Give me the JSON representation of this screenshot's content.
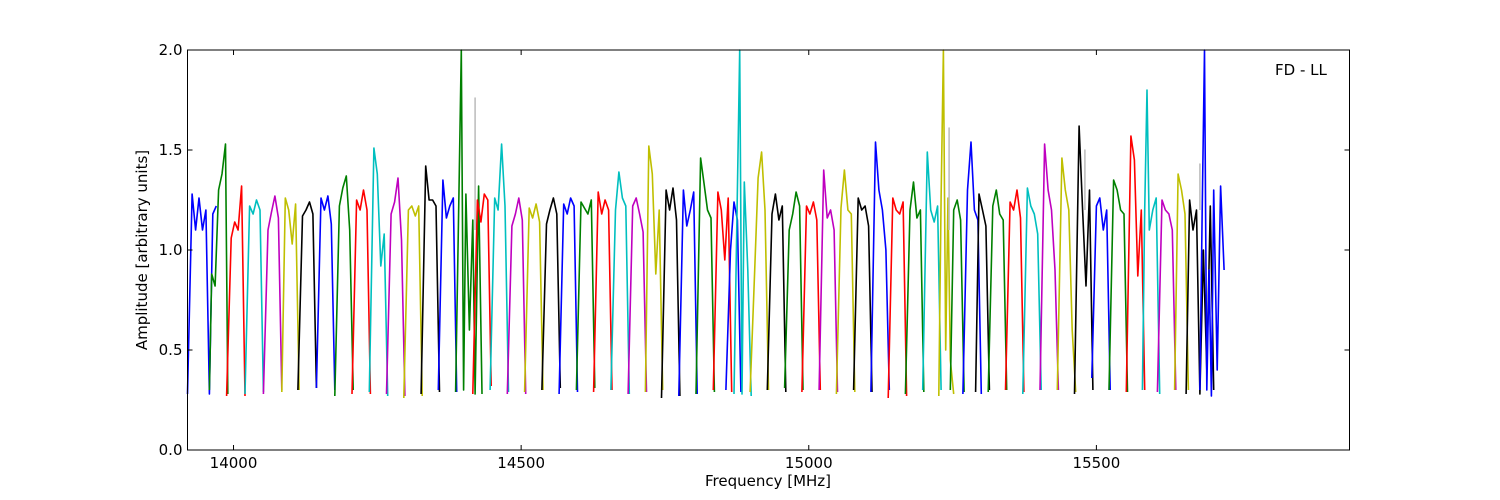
{
  "chart_data": {
    "type": "line",
    "title": "",
    "xlabel": "Frequency [MHz]",
    "ylabel": "Amplitude [arbitrary units]",
    "xlim": [
      13920,
      15940
    ],
    "ylim": [
      0.0,
      2.0
    ],
    "xticks": [
      14000,
      14500,
      15000,
      15500
    ],
    "xtick_labels": [
      "14000",
      "14500",
      "15000",
      "15500"
    ],
    "yticks": [
      0.0,
      0.5,
      1.0,
      1.5,
      2.0
    ],
    "ytick_labels": [
      "0.0",
      "0.5",
      "1.0",
      "1.5",
      "2.0"
    ],
    "grid": false,
    "annotation": "FD - LL",
    "color_cycle": [
      "#0000ff",
      "#008000",
      "#ff0000",
      "#00bfbf",
      "#bf00bf",
      "#bfbf00",
      "#000000"
    ],
    "series": [
      {
        "color": "#0000ff",
        "x": [
          13920,
          13928,
          13934,
          13940,
          13946,
          13952,
          13958,
          13964,
          13970
        ],
        "y": [
          0.28,
          1.28,
          1.1,
          1.26,
          1.1,
          1.2,
          0.28,
          1.18,
          1.22
        ]
      },
      {
        "color": "#008000",
        "x": [
          13958,
          13962,
          13968,
          13974,
          13980,
          13986,
          13990
        ],
        "y": [
          0.3,
          0.88,
          0.82,
          1.3,
          1.38,
          1.53,
          0.28
        ]
      },
      {
        "color": "#ff0000",
        "x": [
          13988,
          13996,
          14002,
          14008,
          14014,
          14020
        ],
        "y": [
          0.27,
          1.06,
          1.14,
          1.1,
          1.32,
          0.27
        ]
      },
      {
        "color": "#00bfbf",
        "x": [
          14020,
          14028,
          14034,
          14040,
          14046,
          14052
        ],
        "y": [
          0.28,
          1.22,
          1.18,
          1.25,
          1.2,
          0.29
        ]
      },
      {
        "color": "#bf00bf",
        "x": [
          14052,
          14060,
          14066,
          14072,
          14078,
          14084
        ],
        "y": [
          0.28,
          1.1,
          1.19,
          1.27,
          1.16,
          0.3
        ]
      },
      {
        "color": "#bfbf00",
        "x": [
          14084,
          14090,
          14096,
          14102,
          14108,
          14114
        ],
        "y": [
          0.29,
          1.26,
          1.2,
          1.03,
          1.23,
          0.3
        ]
      },
      {
        "color": "#000000",
        "x": [
          14112,
          14120,
          14126,
          14132,
          14138,
          14144
        ],
        "y": [
          0.3,
          1.17,
          1.2,
          1.24,
          1.18,
          0.31
        ]
      },
      {
        "color": "#0000ff",
        "x": [
          14144,
          14152,
          14158,
          14164,
          14170,
          14176
        ],
        "y": [
          0.31,
          1.26,
          1.2,
          1.27,
          1.13,
          0.3
        ]
      },
      {
        "color": "#008000",
        "x": [
          14176,
          14184,
          14190,
          14196,
          14202,
          14208
        ],
        "y": [
          0.27,
          1.22,
          1.31,
          1.37,
          1.1,
          0.3
        ]
      },
      {
        "color": "#ff0000",
        "x": [
          14206,
          14214,
          14220,
          14226,
          14232,
          14238
        ],
        "y": [
          0.28,
          1.25,
          1.2,
          1.3,
          1.2,
          0.28
        ]
      },
      {
        "color": "#00bfbf",
        "x": [
          14236,
          14244,
          14250,
          14256,
          14262,
          14268
        ],
        "y": [
          0.29,
          1.51,
          1.38,
          0.92,
          1.08,
          0.27
        ]
      },
      {
        "color": "#bf00bf",
        "x": [
          14266,
          14274,
          14280,
          14286,
          14292,
          14298
        ],
        "y": [
          0.28,
          1.18,
          1.24,
          1.36,
          1.05,
          0.27
        ]
      },
      {
        "color": "#bfbf00",
        "x": [
          14296,
          14304,
          14310,
          14316,
          14322,
          14328
        ],
        "y": [
          0.26,
          1.2,
          1.22,
          1.17,
          1.22,
          0.27
        ]
      },
      {
        "color": "#000000",
        "x": [
          14326,
          14334,
          14340,
          14346,
          14352,
          14358
        ],
        "y": [
          0.28,
          1.42,
          1.25,
          1.25,
          1.22,
          0.29
        ]
      },
      {
        "color": "#0000ff",
        "x": [
          14356,
          14364,
          14370,
          14376,
          14382,
          14388
        ],
        "y": [
          0.3,
          1.35,
          1.16,
          1.22,
          1.26,
          0.29
        ]
      },
      {
        "color": "#008000",
        "x": [
          14386,
          14392,
          14396,
          14400,
          14404,
          14410,
          14416,
          14420,
          14426,
          14432
        ],
        "y": [
          0.29,
          1.3,
          2.0,
          0.3,
          1.28,
          0.6,
          1.15,
          0.28,
          1.32,
          0.28
        ]
      },
      {
        "color": "#ff0000",
        "x": [
          14416,
          14424,
          14430,
          14436,
          14442,
          14448
        ],
        "y": [
          0.28,
          1.25,
          1.14,
          1.28,
          1.25,
          0.32
        ]
      },
      {
        "color": "#bfbfbf",
        "x": [
          14420,
          14420,
          14420
        ],
        "y": [
          1.1,
          1.76,
          1.1
        ]
      },
      {
        "color": "#00bfbf",
        "x": [
          14446,
          14454,
          14460,
          14466,
          14472,
          14478
        ],
        "y": [
          0.3,
          1.26,
          1.2,
          1.53,
          1.22,
          0.29
        ]
      },
      {
        "color": "#bf00bf",
        "x": [
          14476,
          14484,
          14490,
          14496,
          14502,
          14508
        ],
        "y": [
          0.28,
          1.12,
          1.18,
          1.26,
          1.15,
          0.28
        ]
      },
      {
        "color": "#bfbf00",
        "x": [
          14506,
          14514,
          14520,
          14526,
          14532,
          14538
        ],
        "y": [
          0.29,
          1.21,
          1.16,
          1.23,
          1.14,
          0.3
        ]
      },
      {
        "color": "#000000",
        "x": [
          14536,
          14544,
          14550,
          14556,
          14562,
          14568
        ],
        "y": [
          0.3,
          1.13,
          1.2,
          1.26,
          1.18,
          0.31
        ]
      },
      {
        "color": "#0000ff",
        "x": [
          14566,
          14574,
          14580,
          14586,
          14592,
          14598
        ],
        "y": [
          0.28,
          1.23,
          1.18,
          1.26,
          1.22,
          0.29
        ]
      },
      {
        "color": "#008000",
        "x": [
          14596,
          14604,
          14610,
          14616,
          14622,
          14628
        ],
        "y": [
          0.3,
          1.24,
          1.21,
          1.18,
          1.25,
          0.31
        ]
      },
      {
        "color": "#ff0000",
        "x": [
          14626,
          14634,
          14640,
          14646,
          14652,
          14658
        ],
        "y": [
          0.29,
          1.29,
          1.18,
          1.25,
          1.2,
          0.3
        ]
      },
      {
        "color": "#00bfbf",
        "x": [
          14656,
          14664,
          14670,
          14676,
          14682,
          14688
        ],
        "y": [
          0.3,
          1.2,
          1.39,
          1.26,
          1.22,
          0.28
        ]
      },
      {
        "color": "#bf00bf",
        "x": [
          14686,
          14694,
          14700,
          14706,
          14712,
          14718
        ],
        "y": [
          0.28,
          1.22,
          1.26,
          1.18,
          1.09,
          0.29
        ]
      },
      {
        "color": "#bfbf00",
        "x": [
          14716,
          14722,
          14728,
          14734,
          14740,
          14746
        ],
        "y": [
          0.29,
          1.52,
          1.38,
          0.88,
          1.2,
          0.3
        ]
      },
      {
        "color": "#000000",
        "x": [
          14744,
          14752,
          14758,
          14764,
          14770,
          14776
        ],
        "y": [
          0.26,
          1.3,
          1.2,
          1.31,
          1.15,
          0.27
        ]
      },
      {
        "color": "#0000ff",
        "x": [
          14774,
          14782,
          14788,
          14794,
          14800,
          14806
        ],
        "y": [
          0.27,
          1.3,
          1.12,
          1.2,
          1.29,
          0.28
        ]
      },
      {
        "color": "#008000",
        "x": [
          14804,
          14812,
          14818,
          14824,
          14830,
          14836
        ],
        "y": [
          0.28,
          1.46,
          1.33,
          1.2,
          1.16,
          0.29
        ]
      },
      {
        "color": "#ff0000",
        "x": [
          14834,
          14842,
          14848,
          14854,
          14860,
          14866
        ],
        "y": [
          0.3,
          1.29,
          1.2,
          0.95,
          1.26,
          0.29
        ]
      },
      {
        "color": "#0000ff",
        "x": [
          14856,
          14864,
          14870,
          14876,
          14882
        ],
        "y": [
          0.3,
          1.0,
          1.24,
          1.15,
          0.29
        ]
      },
      {
        "color": "#00bfbf",
        "x": [
          14870,
          14876,
          14880,
          14884,
          14888,
          14894,
          14900
        ],
        "y": [
          0.28,
          1.3,
          2.0,
          0.28,
          1.34,
          0.9,
          0.27
        ]
      },
      {
        "color": "#bfbf00",
        "x": [
          14898,
          14906,
          14912,
          14918,
          14924,
          14930
        ],
        "y": [
          0.29,
          0.9,
          1.36,
          1.49,
          1.2,
          0.3
        ]
      },
      {
        "color": "#000000",
        "x": [
          14928,
          14936,
          14942,
          14948,
          14954,
          14960
        ],
        "y": [
          0.3,
          1.18,
          1.28,
          1.15,
          1.22,
          0.29
        ]
      },
      {
        "color": "#008000",
        "x": [
          14958,
          14966,
          14972,
          14978,
          14984,
          14990
        ],
        "y": [
          0.31,
          1.1,
          1.18,
          1.29,
          1.22,
          0.3
        ]
      },
      {
        "color": "#ff0000",
        "x": [
          14988,
          14996,
          15002,
          15008,
          15014,
          15020
        ],
        "y": [
          0.29,
          1.22,
          1.18,
          1.24,
          1.15,
          0.3
        ]
      },
      {
        "color": "#bf00bf",
        "x": [
          15018,
          15026,
          15032,
          15038,
          15044,
          15050
        ],
        "y": [
          0.3,
          1.4,
          1.16,
          1.2,
          1.1,
          0.29
        ]
      },
      {
        "color": "#bfbf00",
        "x": [
          15048,
          15056,
          15062,
          15068,
          15074,
          15080
        ],
        "y": [
          0.28,
          1.21,
          1.4,
          1.2,
          1.18,
          0.29
        ]
      },
      {
        "color": "#000000",
        "x": [
          15078,
          15086,
          15092,
          15098,
          15104,
          15110
        ],
        "y": [
          0.3,
          1.26,
          1.2,
          1.22,
          1.12,
          0.29
        ]
      },
      {
        "color": "#0000ff",
        "x": [
          15108,
          15116,
          15122,
          15128,
          15134,
          15140
        ],
        "y": [
          0.29,
          1.54,
          1.3,
          1.2,
          1.0,
          0.3
        ]
      },
      {
        "color": "#ff0000",
        "x": [
          15138,
          15146,
          15152,
          15158,
          15164,
          15170
        ],
        "y": [
          0.26,
          1.26,
          1.2,
          1.18,
          1.24,
          0.27
        ]
      },
      {
        "color": "#008000",
        "x": [
          15168,
          15176,
          15182,
          15188,
          15194,
          15200
        ],
        "y": [
          0.28,
          1.2,
          1.34,
          1.16,
          1.2,
          0.29
        ]
      },
      {
        "color": "#00bfbf",
        "x": [
          15198,
          15206,
          15212,
          15218,
          15224,
          15230
        ],
        "y": [
          0.3,
          1.49,
          1.2,
          1.14,
          1.22,
          0.3
        ]
      },
      {
        "color": "#bfbf00",
        "x": [
          15226,
          15230,
          15234,
          15238,
          15242,
          15246,
          15252
        ],
        "y": [
          0.27,
          1.26,
          2.0,
          0.5,
          1.26,
          0.45,
          0.28
        ]
      },
      {
        "color": "#bfbfbf",
        "x": [
          15244,
          15244,
          15244
        ],
        "y": [
          1.1,
          1.61,
          1.1
        ]
      },
      {
        "color": "#008000",
        "x": [
          15246,
          15252,
          15258,
          15264,
          15270
        ],
        "y": [
          0.3,
          1.2,
          1.25,
          1.15,
          0.29
        ]
      },
      {
        "color": "#0000ff",
        "x": [
          15268,
          15276,
          15282,
          15288,
          15294,
          15300
        ],
        "y": [
          0.28,
          1.3,
          1.54,
          1.2,
          1.15,
          0.28
        ]
      },
      {
        "color": "#000000",
        "x": [
          15290,
          15296,
          15302,
          15308,
          15314
        ],
        "y": [
          0.29,
          1.28,
          1.2,
          1.12,
          0.3
        ]
      },
      {
        "color": "#008000",
        "x": [
          15312,
          15320,
          15326,
          15332,
          15338,
          15344
        ],
        "y": [
          0.29,
          1.22,
          1.3,
          1.18,
          1.15,
          0.3
        ]
      },
      {
        "color": "#ff0000",
        "x": [
          15342,
          15350,
          15356,
          15362,
          15368,
          15374
        ],
        "y": [
          0.3,
          1.24,
          1.2,
          1.3,
          1.16,
          0.29
        ]
      },
      {
        "color": "#00bfbf",
        "x": [
          15372,
          15380,
          15386,
          15392,
          15398,
          15404
        ],
        "y": [
          0.28,
          1.31,
          1.22,
          1.18,
          1.08,
          0.3
        ]
      },
      {
        "color": "#bf00bf",
        "x": [
          15402,
          15410,
          15416,
          15422,
          15428,
          15434
        ],
        "y": [
          0.3,
          1.53,
          1.3,
          1.2,
          0.9,
          0.3
        ]
      },
      {
        "color": "#bfbf00",
        "x": [
          15432,
          15440,
          15446,
          15452,
          15458,
          15464
        ],
        "y": [
          0.3,
          1.46,
          1.3,
          1.2,
          0.6,
          0.29
        ]
      },
      {
        "color": "#000000",
        "x": [
          15462,
          15470,
          15476,
          15482,
          15488,
          15494
        ],
        "y": [
          0.28,
          1.62,
          1.2,
          0.82,
          1.3,
          0.3
        ]
      },
      {
        "color": "#bfbfbf",
        "x": [
          15480,
          15480,
          15480
        ],
        "y": [
          1.2,
          1.5,
          1.2
        ]
      },
      {
        "color": "#0000ff",
        "x": [
          15492,
          15500,
          15506,
          15512,
          15518,
          15524
        ],
        "y": [
          0.36,
          1.22,
          1.26,
          1.1,
          1.2,
          0.3
        ]
      },
      {
        "color": "#008000",
        "x": [
          15522,
          15530,
          15536,
          15542,
          15548,
          15554
        ],
        "y": [
          0.3,
          1.35,
          1.3,
          1.2,
          1.18,
          0.29
        ]
      },
      {
        "color": "#ff0000",
        "x": [
          15552,
          15560,
          15566,
          15572,
          15578,
          15584
        ],
        "y": [
          0.29,
          1.57,
          1.45,
          0.87,
          1.2,
          0.3
        ]
      },
      {
        "color": "#00bfbf",
        "x": [
          15580,
          15584,
          15588,
          15592,
          15598,
          15604,
          15610
        ],
        "y": [
          0.3,
          1.2,
          1.8,
          1.1,
          1.2,
          1.26,
          0.28
        ]
      },
      {
        "color": "#bf00bf",
        "x": [
          15606,
          15614,
          15620,
          15626,
          15632,
          15638
        ],
        "y": [
          0.29,
          1.25,
          1.2,
          1.18,
          1.1,
          0.3
        ]
      },
      {
        "color": "#bfbf00",
        "x": [
          15636,
          15642,
          15648,
          15654,
          15660
        ],
        "y": [
          0.3,
          1.38,
          1.3,
          1.18,
          0.3
        ]
      },
      {
        "color": "#bfbfbf",
        "x": [
          15680,
          15680,
          15680
        ],
        "y": [
          1.2,
          1.43,
          1.2
        ]
      },
      {
        "color": "#000000",
        "x": [
          15656,
          15662,
          15668,
          15674,
          15680,
          15686,
          15692,
          15698,
          15704
        ],
        "y": [
          0.28,
          1.25,
          1.1,
          1.2,
          0.28,
          1.0,
          0.4,
          1.22,
          0.3
        ]
      },
      {
        "color": "#0000ff",
        "x": [
          15680,
          15684,
          15688,
          15692,
          15696,
          15700,
          15704,
          15710,
          15716,
          15722
        ],
        "y": [
          0.3,
          1.2,
          2.0,
          0.3,
          0.9,
          0.27,
          1.3,
          0.4,
          1.32,
          0.9
        ]
      }
    ]
  }
}
